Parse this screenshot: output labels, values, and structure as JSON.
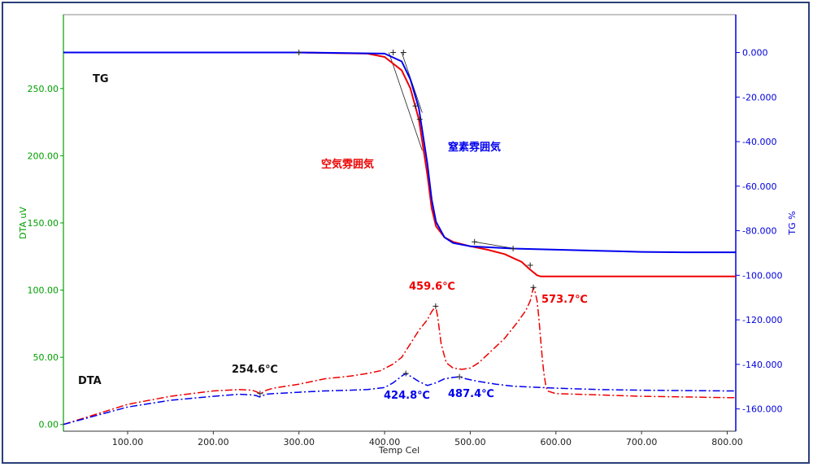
{
  "chart_data": {
    "type": "line",
    "xlabel": "Temp Cel",
    "ylabel_left": "DTA uV",
    "ylabel_right": "TG %",
    "xlim": [
      25,
      810
    ],
    "ylim_left": [
      -5,
      305
    ],
    "ylim_right": [
      -170,
      17
    ],
    "x_ticks": [
      "100.00",
      "200.00",
      "300.00",
      "400.00",
      "500.00",
      "600.00",
      "700.00",
      "800.00"
    ],
    "x_tick_values": [
      100,
      200,
      300,
      400,
      500,
      600,
      700,
      800
    ],
    "y_left_ticks": [
      "0.00",
      "50.00",
      "100.00",
      "150.00",
      "200.00",
      "250.00"
    ],
    "y_left_tick_values": [
      0,
      50,
      100,
      150,
      200,
      250
    ],
    "y_right_ticks": [
      "0.000",
      "-20.000",
      "-40.000",
      "-60.000",
      "-80.000",
      "-100.000",
      "-120.000",
      "-140.000",
      "-160.000"
    ],
    "y_right_tick_values": [
      0,
      -20,
      -40,
      -60,
      -80,
      -100,
      -120,
      -140,
      -160
    ],
    "colors": {
      "left_axis": "#00a000",
      "right_axis": "#0000dd",
      "air": "#ee0000",
      "nitrogen": "#0000ee",
      "frame": "#2b3f7a"
    },
    "labels": {
      "tg": "TG",
      "dta": "DTA",
      "air": "空気雰囲気",
      "nitrogen": "窒素雰囲気",
      "peak_air_1": "459.6℃",
      "peak_air_2": "573.7℃",
      "dip": "254.6℃",
      "peak_n2_1": "424.8℃",
      "peak_n2_2": "487.4℃"
    },
    "series": [
      {
        "name": "空気雰囲気",
        "kind": "TG",
        "axis": "right",
        "x": [
          25,
          300,
          380,
          400,
          420,
          430,
          440,
          450,
          455,
          460,
          470,
          480,
          500,
          520,
          540,
          560,
          570,
          578,
          582,
          590,
          620,
          700,
          800,
          810
        ],
        "y": [
          0,
          0,
          -0.5,
          -2,
          -8,
          -16,
          -30,
          -55,
          -70,
          -78,
          -83,
          -85,
          -87,
          -88.5,
          -90.5,
          -94,
          -97.5,
          -100,
          -100.5,
          -100.5,
          -100.5,
          -100.5,
          -100.5,
          -100.5
        ]
      },
      {
        "name": "窒素雰囲気",
        "kind": "TG",
        "axis": "right",
        "x": [
          25,
          300,
          400,
          420,
          430,
          440,
          450,
          455,
          460,
          470,
          480,
          500,
          550,
          600,
          650,
          700,
          750,
          810
        ],
        "y": [
          0,
          0,
          -0.5,
          -4,
          -12,
          -25,
          -50,
          -66,
          -76,
          -83,
          -85.5,
          -87,
          -88,
          -88.5,
          -89,
          -89.5,
          -89.7,
          -89.7
        ]
      },
      {
        "name": "空気雰囲気",
        "kind": "DTA",
        "axis": "left",
        "x": [
          25,
          100,
          150,
          200,
          230,
          245,
          250,
          254.6,
          258,
          262,
          270,
          300,
          330,
          360,
          380,
          395,
          410,
          420,
          430,
          440,
          450,
          455,
          459.6,
          462,
          466,
          472,
          480,
          490,
          500,
          510,
          520,
          540,
          555,
          565,
          570,
          573.7,
          576,
          578,
          580,
          582,
          584,
          586,
          588,
          590,
          600,
          650,
          700,
          750,
          800,
          810
        ],
        "y": [
          0,
          15,
          21,
          25,
          26,
          25.5,
          24.5,
          23,
          24,
          25.5,
          27,
          30,
          34,
          36,
          38,
          40,
          45,
          50,
          60,
          70,
          78,
          84,
          88,
          80,
          60,
          46,
          42,
          41,
          42,
          46,
          52,
          64,
          76,
          85,
          92,
          102,
          98,
          92,
          80,
          65,
          50,
          38,
          30,
          25,
          23,
          22,
          21,
          20.5,
          20,
          20
        ]
      },
      {
        "name": "窒素雰囲気",
        "kind": "DTA",
        "axis": "left",
        "x": [
          25,
          100,
          150,
          200,
          230,
          245,
          250,
          254,
          258,
          262,
          270,
          300,
          330,
          360,
          380,
          400,
          410,
          420,
          424.8,
          430,
          440,
          450,
          460,
          470,
          480,
          487.4,
          495,
          510,
          530,
          550,
          600,
          650,
          700,
          750,
          800,
          810
        ],
        "y": [
          0,
          13,
          18,
          21,
          22.5,
          22,
          21.5,
          20.5,
          21.5,
          22.5,
          23,
          24,
          25,
          25.5,
          26,
          27.5,
          31,
          36,
          38,
          36,
          32,
          29,
          31,
          34,
          35,
          35.5,
          34,
          32,
          30,
          28.5,
          27,
          26,
          25.5,
          25.2,
          25,
          25
        ]
      }
    ],
    "tangents": [
      {
        "name": "空気雰囲気",
        "axis": "right",
        "points": [
          [
            405,
            0
          ],
          [
            444,
            -44
          ]
        ]
      },
      {
        "name": "窒素雰囲気",
        "axis": "right",
        "points": [
          [
            420,
            0
          ],
          [
            444,
            -27
          ]
        ]
      },
      {
        "name": "空気雰囲気",
        "axis": "right",
        "points": [
          [
            505,
            -85
          ],
          [
            552,
            -88
          ]
        ]
      }
    ],
    "markers": [
      {
        "axis": "right",
        "x": 300,
        "y": 0
      },
      {
        "axis": "right",
        "x": 410,
        "y": 0
      },
      {
        "axis": "right",
        "x": 422,
        "y": 0
      },
      {
        "axis": "right",
        "x": 436,
        "y": -24
      },
      {
        "axis": "right",
        "x": 441,
        "y": -30
      },
      {
        "axis": "right",
        "x": 505,
        "y": -85
      },
      {
        "axis": "right",
        "x": 550,
        "y": -88
      },
      {
        "axis": "right",
        "x": 570,
        "y": -95.5
      },
      {
        "axis": "left",
        "x": 459.6,
        "y": 88
      },
      {
        "axis": "left",
        "x": 573.7,
        "y": 102
      },
      {
        "axis": "left",
        "x": 254.6,
        "y": 23
      },
      {
        "axis": "left",
        "x": 424.8,
        "y": 38
      },
      {
        "axis": "left",
        "x": 487.4,
        "y": 35.5
      }
    ]
  }
}
